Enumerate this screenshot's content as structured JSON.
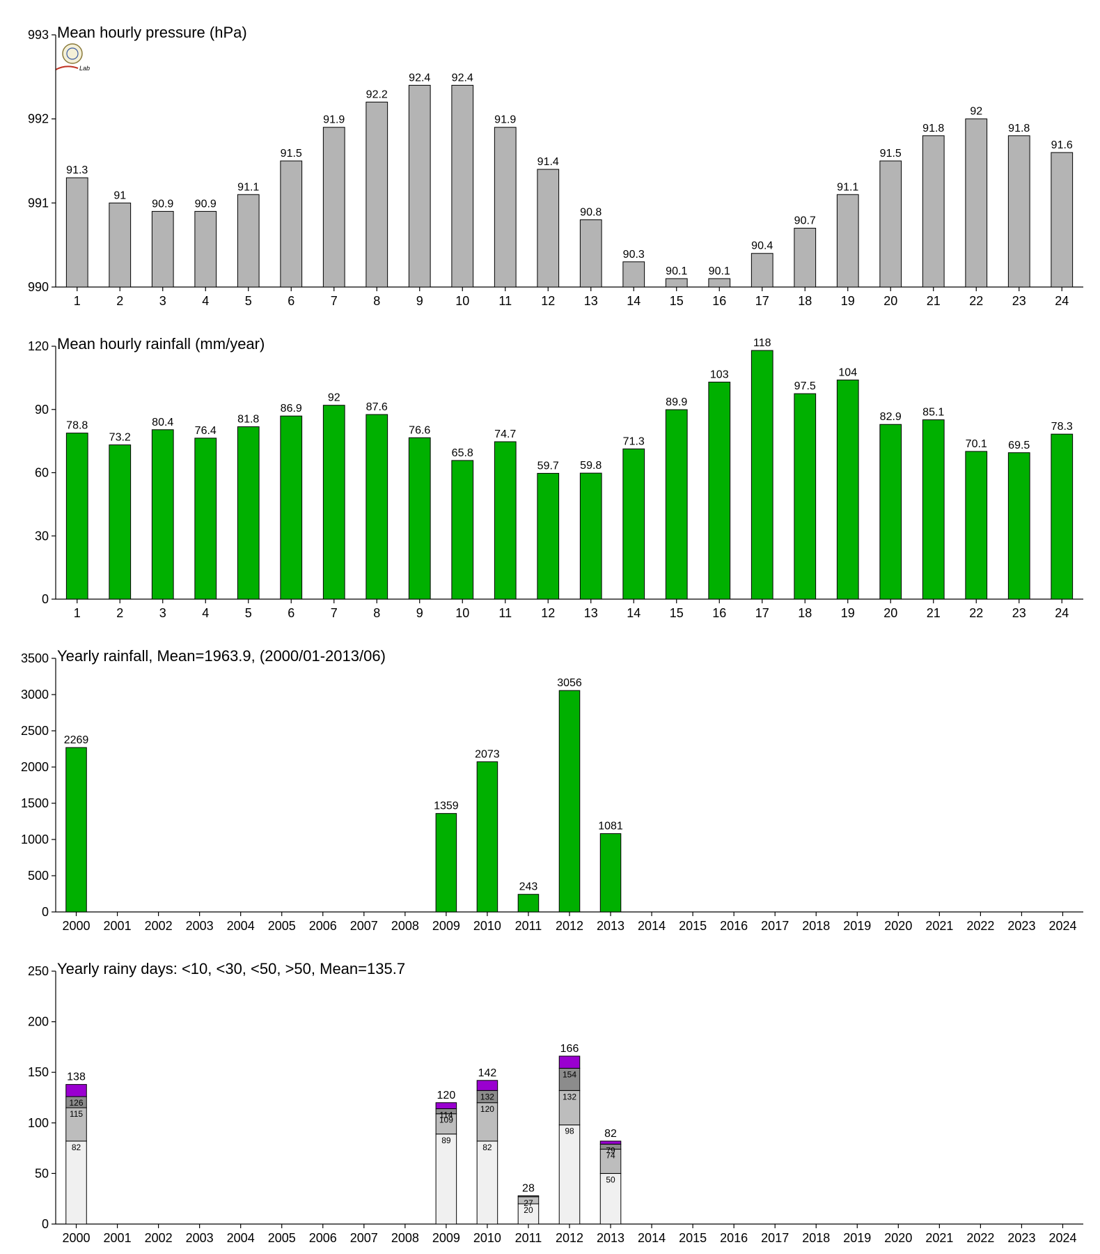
{
  "colors": {
    "pressure": "#b4b4b4",
    "rain": "#00b000",
    "days_lt10": "#f0f0f0",
    "days_lt30": "#bdbdbd",
    "days_lt50": "#8c8c8c",
    "days_gt50": "#9a00d0"
  },
  "logo": {
    "text": "Lab"
  },
  "chart_data": [
    {
      "type": "bar",
      "title": "Mean hourly pressure (hPa)",
      "categories": [
        "1",
        "2",
        "3",
        "4",
        "5",
        "6",
        "7",
        "8",
        "9",
        "10",
        "11",
        "12",
        "13",
        "14",
        "15",
        "16",
        "17",
        "18",
        "19",
        "20",
        "21",
        "22",
        "23",
        "24"
      ],
      "values": [
        991.3,
        991,
        990.9,
        990.9,
        991.1,
        991.5,
        991.9,
        992.2,
        992.4,
        992.4,
        991.9,
        991.4,
        990.8,
        990.3,
        990.1,
        990.1,
        990.4,
        990.7,
        991.1,
        991.5,
        991.8,
        992,
        991.8,
        991.6
      ],
      "value_labels": [
        "91.3",
        "91",
        "90.9",
        "90.9",
        "91.1",
        "91.5",
        "91.9",
        "92.2",
        "92.4",
        "92.4",
        "91.9",
        "91.4",
        "90.8",
        "90.3",
        "90.1",
        "90.1",
        "90.4",
        "90.7",
        "91.1",
        "91.5",
        "91.8",
        "92",
        "91.8",
        "91.6"
      ],
      "ylim": [
        990,
        993
      ],
      "yticks": [
        990,
        991,
        992,
        993
      ],
      "color": "pressure"
    },
    {
      "type": "bar",
      "title": "Mean hourly rainfall (mm/year)",
      "categories": [
        "1",
        "2",
        "3",
        "4",
        "5",
        "6",
        "7",
        "8",
        "9",
        "10",
        "11",
        "12",
        "13",
        "14",
        "15",
        "16",
        "17",
        "18",
        "19",
        "20",
        "21",
        "22",
        "23",
        "24"
      ],
      "values": [
        78.8,
        73.2,
        80.4,
        76.4,
        81.8,
        86.9,
        92,
        87.6,
        76.6,
        65.8,
        74.7,
        59.7,
        59.8,
        71.3,
        89.9,
        103,
        118,
        97.5,
        104,
        82.9,
        85.1,
        70.1,
        69.5,
        78.3
      ],
      "value_labels": [
        "78.8",
        "73.2",
        "80.4",
        "76.4",
        "81.8",
        "86.9",
        "92",
        "87.6",
        "76.6",
        "65.8",
        "74.7",
        "59.7",
        "59.8",
        "71.3",
        "89.9",
        "103",
        "118",
        "97.5",
        "104",
        "82.9",
        "85.1",
        "70.1",
        "69.5",
        "78.3"
      ],
      "ylim": [
        0,
        120
      ],
      "yticks": [
        0,
        30,
        60,
        90,
        120
      ],
      "color": "rain"
    },
    {
      "type": "bar",
      "title": "Yearly rainfall, Mean=1963.9, (2000/01-2013/06)",
      "categories": [
        "2000",
        "2001",
        "2002",
        "2003",
        "2004",
        "2005",
        "2006",
        "2007",
        "2008",
        "2009",
        "2010",
        "2011",
        "2012",
        "2013",
        "2014",
        "2015",
        "2016",
        "2017",
        "2018",
        "2019",
        "2020",
        "2021",
        "2022",
        "2023",
        "2024"
      ],
      "values": [
        2269,
        null,
        null,
        null,
        null,
        null,
        null,
        null,
        null,
        1359,
        2073,
        243,
        3056,
        1081,
        null,
        null,
        null,
        null,
        null,
        null,
        null,
        null,
        null,
        null,
        null
      ],
      "value_labels": [
        "2269",
        "",
        "",
        "",
        "",
        "",
        "",
        "",
        "",
        "1359",
        "2073",
        "243",
        "3056",
        "1081",
        "",
        "",
        "",
        "",
        "",
        "",
        "",
        "",
        "",
        "",
        ""
      ],
      "ylim": [
        0,
        3500
      ],
      "yticks": [
        0,
        500,
        1000,
        1500,
        2000,
        2500,
        3000,
        3500
      ],
      "color": "rain"
    },
    {
      "type": "bar",
      "stacked": true,
      "title": "Yearly rainy days: <10, <30, <50, >50, Mean=135.7",
      "categories": [
        "2000",
        "2001",
        "2002",
        "2003",
        "2004",
        "2005",
        "2006",
        "2007",
        "2008",
        "2009",
        "2010",
        "2011",
        "2012",
        "2013",
        "2014",
        "2015",
        "2016",
        "2017",
        "2018",
        "2019",
        "2020",
        "2021",
        "2022",
        "2023",
        "2024"
      ],
      "stacks": [
        {
          "year": "2000",
          "levels": [
            82,
            115,
            126,
            138
          ],
          "labels": [
            "82",
            "115",
            "126"
          ],
          "total_label": "138"
        },
        {
          "year": "2009",
          "levels": [
            89,
            109,
            114,
            120
          ],
          "labels": [
            "89",
            "109",
            "114"
          ],
          "total_label": "120"
        },
        {
          "year": "2010",
          "levels": [
            82,
            120,
            132,
            142
          ],
          "labels": [
            "82",
            "120",
            "132"
          ],
          "total_label": "142"
        },
        {
          "year": "2011",
          "levels": [
            20,
            27,
            28,
            28
          ],
          "labels": [
            "20",
            "27",
            ""
          ],
          "total_label": "28"
        },
        {
          "year": "2012",
          "levels": [
            98,
            132,
            154,
            166
          ],
          "labels": [
            "98",
            "132",
            "154"
          ],
          "total_label": "166"
        },
        {
          "year": "2013",
          "levels": [
            50,
            74,
            79,
            82
          ],
          "labels": [
            "50",
            "74",
            "79"
          ],
          "total_label": "82"
        }
      ],
      "segment_colors": [
        "days_lt10",
        "days_lt30",
        "days_lt50",
        "days_gt50"
      ],
      "ylim": [
        0,
        250
      ],
      "yticks": [
        0,
        50,
        100,
        150,
        200,
        250
      ]
    }
  ]
}
